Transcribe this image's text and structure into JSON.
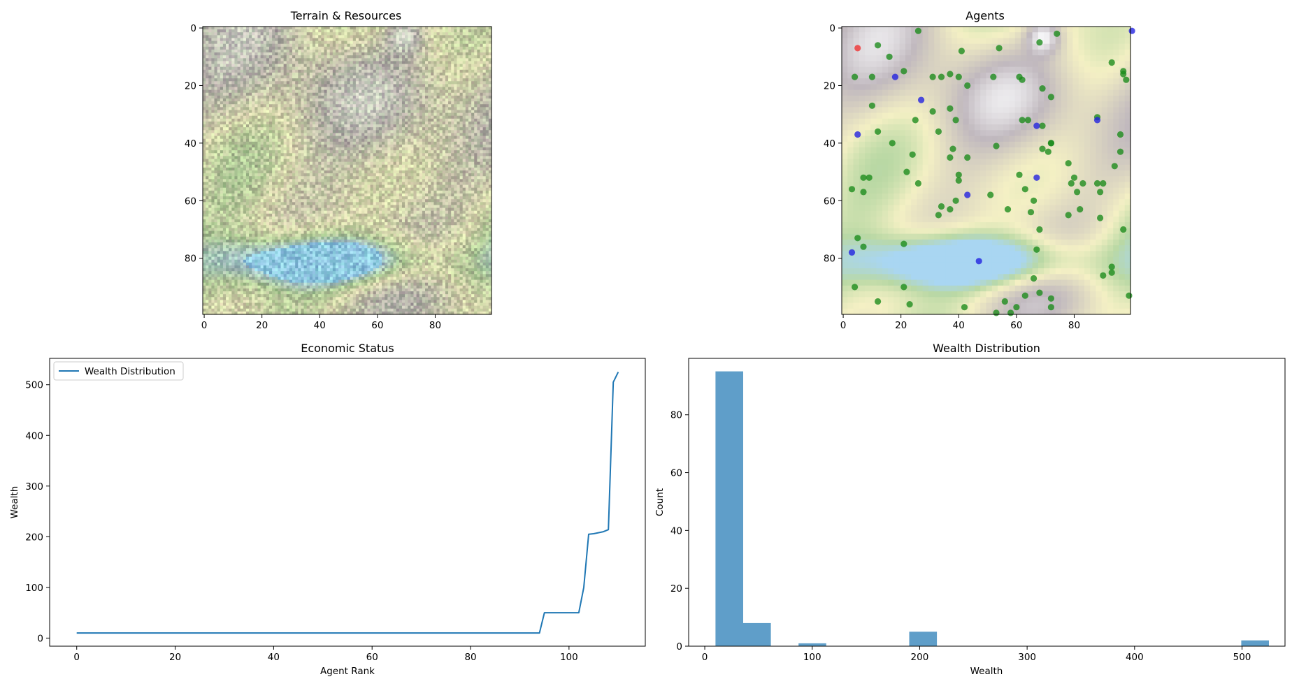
{
  "colors": {
    "line": "#1f77b4",
    "hist": "#5f9ec9",
    "agent_green": "#1a8a1a",
    "agent_blue": "#1f1fe0",
    "agent_red": "#f03030",
    "water": "#a9d6f2",
    "low": "#f4f0c4",
    "grass": "#b9d8a4",
    "mountain": "#c0b8be",
    "peak": "#f4f4f6"
  },
  "chart_data": [
    {
      "type": "heatmap",
      "title": "Terrain & Resources",
      "grid_size": 100,
      "xlim": [
        -0.5,
        99.5
      ],
      "ylim": [
        99.5,
        -0.5
      ],
      "xticks": [
        0,
        20,
        40,
        60,
        80
      ],
      "yticks": [
        0,
        20,
        40,
        60,
        80
      ],
      "noise": "per-cell resource noise over terrain"
    },
    {
      "type": "scatter",
      "title": "Agents",
      "xlim": [
        -0.5,
        99.5
      ],
      "ylim": [
        99.5,
        -0.5
      ],
      "xticks": [
        0,
        20,
        40,
        60,
        80
      ],
      "yticks": [
        0,
        20,
        40,
        60,
        80
      ],
      "series": [
        {
          "name": "green",
          "points": [
            [
              26,
              1
            ],
            [
              12,
              6
            ],
            [
              54,
              7
            ],
            [
              68,
              5
            ],
            [
              16,
              10
            ],
            [
              41,
              8
            ],
            [
              74,
              2
            ],
            [
              4,
              17
            ],
            [
              10,
              17
            ],
            [
              21,
              15
            ],
            [
              31,
              17
            ],
            [
              34,
              17
            ],
            [
              37,
              16
            ],
            [
              40,
              17
            ],
            [
              43,
              20
            ],
            [
              52,
              17
            ],
            [
              61,
              17
            ],
            [
              62,
              18
            ],
            [
              69,
              21
            ],
            [
              72,
              24
            ],
            [
              93,
              12
            ],
            [
              97,
              15
            ],
            [
              97,
              16
            ],
            [
              98,
              18
            ],
            [
              10,
              27
            ],
            [
              31,
              29
            ],
            [
              25,
              32
            ],
            [
              33,
              36
            ],
            [
              37,
              28
            ],
            [
              39,
              32
            ],
            [
              62,
              32
            ],
            [
              64,
              32
            ],
            [
              69,
              34
            ],
            [
              88,
              31
            ],
            [
              12,
              36
            ],
            [
              17,
              40
            ],
            [
              24,
              44
            ],
            [
              37,
              45
            ],
            [
              38,
              42
            ],
            [
              43,
              45
            ],
            [
              53,
              41
            ],
            [
              61,
              51
            ],
            [
              69,
              42
            ],
            [
              71,
              43
            ],
            [
              72,
              40
            ],
            [
              72,
              40
            ],
            [
              78,
              47
            ],
            [
              96,
              37
            ],
            [
              96,
              43
            ],
            [
              3,
              56
            ],
            [
              7,
              52
            ],
            [
              9,
              52
            ],
            [
              7,
              57
            ],
            [
              22,
              50
            ],
            [
              26,
              54
            ],
            [
              40,
              51
            ],
            [
              40,
              53
            ],
            [
              39,
              60
            ],
            [
              34,
              62
            ],
            [
              33,
              65
            ],
            [
              37,
              63
            ],
            [
              51,
              58
            ],
            [
              57,
              63
            ],
            [
              63,
              56
            ],
            [
              65,
              64
            ],
            [
              68,
              70
            ],
            [
              66,
              60
            ],
            [
              78,
              65
            ],
            [
              79,
              54
            ],
            [
              80,
              52
            ],
            [
              81,
              57
            ],
            [
              83,
              54
            ],
            [
              82,
              63
            ],
            [
              88,
              54
            ],
            [
              89,
              57
            ],
            [
              90,
              54
            ],
            [
              89,
              66
            ],
            [
              94,
              48
            ],
            [
              97,
              70
            ],
            [
              5,
              73
            ],
            [
              7,
              76
            ],
            [
              21,
              75
            ],
            [
              67,
              77
            ],
            [
              66,
              87
            ],
            [
              90,
              86
            ],
            [
              93,
              83
            ],
            [
              93,
              85
            ],
            [
              99,
              93
            ],
            [
              4,
              90
            ],
            [
              12,
              95
            ],
            [
              23,
              96
            ],
            [
              21,
              90
            ],
            [
              42,
              97
            ],
            [
              53,
              99
            ],
            [
              56,
              95
            ],
            [
              60,
              97
            ],
            [
              58,
              99
            ],
            [
              63,
              93
            ],
            [
              68,
              92
            ],
            [
              72,
              94
            ],
            [
              72,
              97
            ]
          ]
        },
        {
          "name": "blue",
          "points": [
            [
              100,
              1
            ],
            [
              18,
              17
            ],
            [
              27,
              25
            ],
            [
              5,
              37
            ],
            [
              67,
              34
            ],
            [
              88,
              32
            ],
            [
              67,
              52
            ],
            [
              43,
              58
            ],
            [
              3,
              78
            ],
            [
              47,
              81
            ]
          ]
        },
        {
          "name": "red",
          "points": [
            [
              5,
              7
            ]
          ]
        }
      ]
    },
    {
      "type": "line",
      "title": "Economic Status",
      "xlabel": "Agent Rank",
      "ylabel": "Wealth",
      "xlim": [
        -5.5,
        115.5
      ],
      "ylim": [
        -16,
        552
      ],
      "xticks": [
        0,
        20,
        40,
        60,
        80,
        100
      ],
      "yticks": [
        0,
        100,
        200,
        300,
        400,
        500
      ],
      "legend": "top-left",
      "series": [
        {
          "name": "Wealth Distribution",
          "x": [
            0,
            94,
            95,
            102,
            103,
            104,
            105,
            107,
            108,
            109,
            110
          ],
          "y": [
            10,
            10,
            50,
            50,
            100,
            205,
            206,
            210,
            214,
            505,
            525
          ]
        }
      ]
    },
    {
      "type": "bar",
      "title": "Wealth Distribution",
      "xlabel": "Wealth",
      "ylabel": "Count",
      "xlim": [
        -15,
        540
      ],
      "ylim": [
        0,
        99.5
      ],
      "xticks": [
        0,
        100,
        200,
        300,
        400,
        500
      ],
      "yticks": [
        0,
        20,
        40,
        60,
        80
      ],
      "bin_start": 10,
      "bin_width": 25.75,
      "counts": [
        95,
        8,
        0,
        1,
        0,
        0,
        0,
        5,
        0,
        0,
        0,
        0,
        0,
        0,
        0,
        0,
        0,
        0,
        0,
        2
      ]
    }
  ]
}
